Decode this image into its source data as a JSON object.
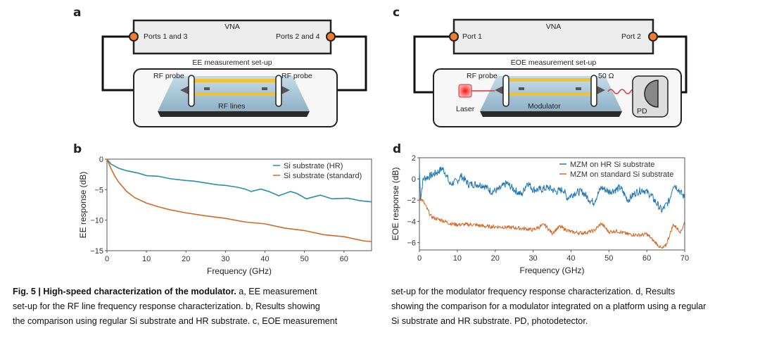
{
  "panel_a": {
    "label": "a",
    "instrument": "VNA",
    "port_left": "Ports 1 and 3",
    "port_right": "Ports 2 and 4",
    "setup_title": "EE measurement set-up",
    "probe_left": "RF probe",
    "probe_right": "RF probe",
    "device": "RF lines"
  },
  "panel_c": {
    "label": "c",
    "instrument": "VNA",
    "port_left": "Port 1",
    "port_right": "Port 2",
    "setup_title": "EOE measurement set-up",
    "probe_left": "RF probe",
    "termination": "50 Ω",
    "laser": "Laser",
    "device": "Modulator",
    "detector": "PD"
  },
  "colors": {
    "blue_b": "#2a8ea8",
    "orange": "#d2692a",
    "blue_d": "#1f77b4",
    "port": "#f07b2c"
  },
  "chart_data": [
    {
      "panel": "b",
      "type": "line",
      "xlabel": "Frequency (GHz)",
      "ylabel": "EE response (dB)",
      "xlim": [
        0,
        67
      ],
      "ylim": [
        -15,
        0
      ],
      "xticks": [
        0,
        10,
        20,
        30,
        40,
        50,
        60
      ],
      "yticks": [
        -15,
        -10,
        -5,
        0
      ],
      "legend": "top-right",
      "series": [
        {
          "name": "Si substrate (HR)",
          "color": "#2a8ea8",
          "x": [
            0,
            1,
            3,
            5,
            8,
            10,
            13,
            16,
            20,
            22,
            25,
            28,
            30,
            33,
            35,
            36.5,
            39,
            41,
            43.5,
            46.5,
            48,
            50.5,
            54,
            57,
            61,
            64,
            67
          ],
          "y": [
            0,
            -0.8,
            -1.5,
            -1.9,
            -2.3,
            -2.7,
            -2.8,
            -3.2,
            -3.5,
            -3.6,
            -3.9,
            -4.2,
            -4.3,
            -4.6,
            -4.9,
            -5.3,
            -4.9,
            -5.3,
            -6.0,
            -5.3,
            -5.6,
            -6.5,
            -5.9,
            -6.5,
            -6.4,
            -6.8,
            -7.0
          ]
        },
        {
          "name": "Si substrate (standard)",
          "color": "#d2692a",
          "x": [
            0,
            1,
            2,
            3,
            5,
            7,
            10,
            13,
            16,
            20,
            25,
            30,
            35,
            40,
            45,
            50,
            55,
            60,
            65,
            67
          ],
          "y": [
            0,
            -1.5,
            -2.8,
            -3.8,
            -5.3,
            -6.3,
            -7.2,
            -7.8,
            -8.3,
            -8.8,
            -9.3,
            -9.7,
            -10.3,
            -10.6,
            -11.3,
            -11.7,
            -12.4,
            -12.7,
            -13.4,
            -13.5
          ]
        }
      ]
    },
    {
      "panel": "d",
      "type": "line",
      "xlabel": "Frequency (GHz)",
      "ylabel": "EOE response (dB)",
      "xlim": [
        0,
        70
      ],
      "ylim": [
        -6.7,
        2
      ],
      "xticks": [
        0,
        10,
        20,
        30,
        40,
        50,
        60,
        70
      ],
      "yticks": [
        -6,
        -4,
        -2,
        0,
        2
      ],
      "legend": "top-right",
      "series": [
        {
          "name": "MZM on HR Si substrate",
          "color": "#1f77b4",
          "x": [
            0,
            0.3,
            1,
            3,
            5,
            6,
            7,
            8,
            10,
            11,
            13,
            15,
            17,
            19,
            21,
            23,
            25,
            27,
            28.5,
            30,
            32,
            34,
            36,
            38,
            39,
            41,
            43,
            45,
            46,
            48,
            50,
            52,
            53,
            55,
            57,
            59,
            61,
            63,
            64,
            66,
            67,
            68,
            70
          ],
          "y": [
            0.8,
            -1.8,
            0,
            0.3,
            0.7,
            1.0,
            0.5,
            -0.5,
            -0.2,
            0.3,
            -0.5,
            -0.5,
            -0.6,
            -1.2,
            -1,
            -0.4,
            -1,
            -1.5,
            -0.3,
            -1,
            -1,
            -0.8,
            -1.2,
            -1,
            -1.8,
            -1.3,
            -1.2,
            -2,
            -2.2,
            -0.8,
            -1.2,
            -1,
            -0.8,
            -2,
            -1.3,
            -1,
            -1.5,
            -2.5,
            -3,
            -2,
            -0.5,
            -0.8,
            -1.8
          ]
        },
        {
          "name": "MZM on standard Si substrate",
          "color": "#d2692a",
          "x": [
            0,
            1,
            2,
            3,
            4,
            6,
            8,
            10,
            14,
            18,
            20,
            25,
            28,
            30,
            33,
            35,
            37,
            40,
            43,
            46,
            48,
            50,
            52,
            55,
            58,
            60,
            62,
            64,
            65,
            67,
            69,
            70
          ],
          "y": [
            -1.8,
            -2.1,
            -2.8,
            -3.5,
            -3.7,
            -3.9,
            -4.2,
            -4.3,
            -4.3,
            -4.5,
            -4.5,
            -4.6,
            -4.7,
            -4.8,
            -4.3,
            -5.1,
            -4.5,
            -5,
            -5.1,
            -4.9,
            -4.2,
            -5,
            -4.9,
            -5.2,
            -5.3,
            -5.2,
            -5.9,
            -6.6,
            -6.3,
            -4.3,
            -5,
            -4
          ]
        }
      ]
    }
  ],
  "caption": {
    "fig_label": "Fig. 5 | High-speed characterization of the modulator.",
    "col1_line1": " a, EE measurement",
    "col1_line2": "set-up for the RF line frequency response characterization. b, Results showing",
    "col1_line3": "the comparison using regular Si substrate and HR substrate. c, EOE measurement",
    "col2_line1": "set-up for the modulator frequency response characterization. d, Results",
    "col2_line2": "showing the comparison for a modulator integrated on a platform using a regular",
    "col2_line3": "Si substrate and HR substrate. PD, photodetector."
  }
}
